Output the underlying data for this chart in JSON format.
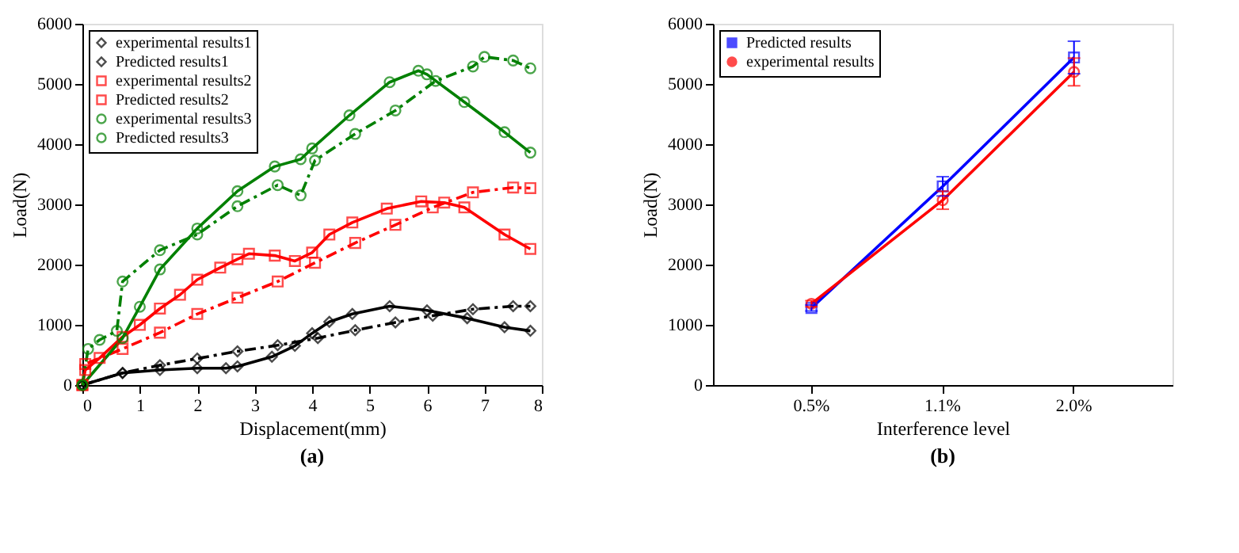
{
  "chart_data": [
    {
      "type": "line",
      "xlabel": "Displacement(mm)",
      "ylabel": "Load(N)",
      "annotations": [
        "(a)"
      ],
      "xlim": [
        0,
        8
      ],
      "xticks": [
        0,
        1,
        2,
        3,
        4,
        5,
        6,
        7,
        8
      ],
      "ylim": [
        0,
        6000
      ],
      "yticks": [
        0,
        1000,
        2000,
        3000,
        4000,
        5000,
        6000
      ],
      "grid": false,
      "legend": "top left",
      "series": [
        {
          "name": "experimental results1",
          "color": "#000000",
          "marker": "diamond",
          "line_style": "solid",
          "x": [
            0,
            0.7,
            1.35,
            2,
            2.5,
            2.7,
            3.3,
            3.7,
            4,
            4.3,
            4.7,
            5.35,
            6,
            6.7,
            7.35,
            7.8
          ],
          "values": [
            0,
            200,
            250,
            280,
            280,
            310,
            470,
            650,
            860,
            1050,
            1180,
            1310,
            1240,
            1110,
            960,
            900
          ]
        },
        {
          "name": "Predicted results1",
          "color": "#000000",
          "marker": "diamond",
          "line_style": "dashdot",
          "x": [
            0,
            0.7,
            1.35,
            2,
            2.7,
            3.4,
            4.1,
            4.75,
            5.45,
            6.1,
            6.8,
            7.5,
            7.8
          ],
          "values": [
            0,
            200,
            330,
            440,
            560,
            660,
            780,
            910,
            1040,
            1150,
            1260,
            1310,
            1310
          ]
        },
        {
          "name": "experimental results2",
          "color": "#ff0000",
          "marker": "square",
          "line_style": "solid",
          "x": [
            0,
            0.05,
            0.3,
            0.7,
            1,
            1.35,
            1.7,
            2,
            2.4,
            2.7,
            2.9,
            3.35,
            3.7,
            4,
            4.3,
            4.7,
            5.3,
            5.9,
            6.3,
            6.65,
            7.35,
            7.8
          ],
          "values": [
            0,
            250,
            450,
            800,
            1000,
            1270,
            1500,
            1750,
            1950,
            2090,
            2180,
            2150,
            2060,
            2200,
            2500,
            2700,
            2930,
            3050,
            3030,
            2950,
            2500,
            2260
          ]
        },
        {
          "name": "Predicted results2",
          "color": "#ff0000",
          "marker": "square",
          "line_style": "dashdot",
          "x": [
            0,
            0.05,
            0.7,
            1.35,
            2,
            2.7,
            3.4,
            4.05,
            4.75,
            5.45,
            6.1,
            6.8,
            7.5,
            7.8
          ],
          "values": [
            0,
            350,
            600,
            870,
            1180,
            1450,
            1720,
            2030,
            2360,
            2660,
            2950,
            3200,
            3280,
            3270
          ]
        },
        {
          "name": "experimental results3",
          "color": "#008000",
          "marker": "circle",
          "line_style": "solid",
          "x": [
            0,
            0.7,
            1,
            1.35,
            2,
            2.7,
            3.35,
            3.8,
            4,
            4.65,
            5.35,
            5.85,
            6,
            6.65,
            7.35,
            7.8
          ],
          "values": [
            0,
            780,
            1300,
            1920,
            2600,
            3220,
            3630,
            3750,
            3930,
            4480,
            5030,
            5220,
            5160,
            4700,
            4200,
            3860
          ]
        },
        {
          "name": "Predicted results3",
          "color": "#008000",
          "marker": "circle",
          "line_style": "dashdot",
          "x": [
            0,
            0.1,
            0.3,
            0.6,
            0.7,
            1.35,
            2,
            2.7,
            3.4,
            3.8,
            4.05,
            4.75,
            5.45,
            6.15,
            6.8,
            7,
            7.5,
            7.8
          ],
          "values": [
            0,
            600,
            750,
            900,
            1720,
            2240,
            2500,
            2970,
            3320,
            3150,
            3730,
            4170,
            4560,
            5050,
            5290,
            5450,
            5390,
            5260
          ]
        }
      ]
    },
    {
      "type": "line",
      "xlabel": "Interference level",
      "ylabel": "Load(N)",
      "annotations": [
        "(b)"
      ],
      "categories": [
        "0.5%",
        "1.1%",
        "2.0%"
      ],
      "ylim": [
        0,
        6000
      ],
      "yticks": [
        0,
        1000,
        2000,
        3000,
        4000,
        5000,
        6000
      ],
      "grid": false,
      "legend": "top left",
      "series": [
        {
          "name": "Predicted results",
          "color": "#0000ff",
          "marker": "square",
          "line_style": "solid",
          "values": [
            1280,
            3300,
            5440
          ],
          "errors": [
            50,
            160,
            270
          ]
        },
        {
          "name": "experimental results",
          "color": "#ff0000",
          "marker": "circle",
          "line_style": "solid",
          "values": [
            1350,
            3070,
            5200
          ],
          "errors": [
            50,
            150,
            230
          ]
        }
      ]
    }
  ]
}
